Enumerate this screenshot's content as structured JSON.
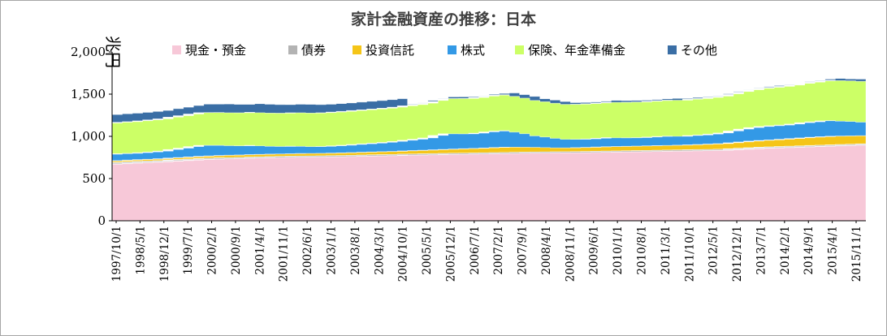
{
  "chart_data": {
    "type": "area",
    "stacked": true,
    "title": "家計金融資産の推移：日本",
    "ylabel": "兆円",
    "xlabel": "",
    "ylim": [
      0,
      2000
    ],
    "yticks": [
      "0",
      "500",
      "1,000",
      "1,500",
      "2,000"
    ],
    "grid": false,
    "legend_position": "top",
    "x_tick_labels": [
      "1997/10/1",
      "1998/5/1",
      "1998/12/1",
      "1999/7/1",
      "2000/2/1",
      "2000/9/1",
      "2001/4/1",
      "2001/11/1",
      "2002/6/1",
      "2003/1/1",
      "2003/8/1",
      "2004/3/1",
      "2004/10/1",
      "2005/5/1",
      "2005/12/1",
      "2006/7/1",
      "2007/2/1",
      "2007/9/1",
      "2008/4/1",
      "2008/11/1",
      "2009/6/1",
      "2010/1/1",
      "2010/8/1",
      "2011/3/1",
      "2011/10/1",
      "2012/5/1",
      "2012/12/1",
      "2013/7/1",
      "2014/2/1",
      "2014/9/1",
      "2015/4/1",
      "2015/11/1"
    ],
    "x": [
      "1997/10",
      "1998/1",
      "1998/4",
      "1998/7",
      "1998/10",
      "1999/1",
      "1999/4",
      "1999/7",
      "1999/10",
      "2000/1",
      "2000/4",
      "2000/7",
      "2000/10",
      "2001/1",
      "2001/4",
      "2001/7",
      "2001/10",
      "2002/1",
      "2002/4",
      "2002/7",
      "2002/10",
      "2003/1",
      "2003/4",
      "2003/7",
      "2003/10",
      "2004/1",
      "2004/4",
      "2004/7",
      "2004/10",
      "2005/1",
      "2005/4",
      "2005/7",
      "2005/10",
      "2006/1",
      "2006/4",
      "2006/7",
      "2006/10",
      "2007/1",
      "2007/4",
      "2007/7",
      "2007/10",
      "2008/1",
      "2008/4",
      "2008/7",
      "2008/10",
      "2009/1",
      "2009/4",
      "2009/7",
      "2009/10",
      "2010/1",
      "2010/4",
      "2010/7",
      "2010/10",
      "2011/1",
      "2011/4",
      "2011/7",
      "2011/10",
      "2012/1",
      "2012/4",
      "2012/7",
      "2012/10",
      "2013/1",
      "2013/4",
      "2013/7",
      "2013/10",
      "2014/1",
      "2014/4",
      "2014/7",
      "2014/10",
      "2015/1",
      "2015/4",
      "2015/7",
      "2015/10",
      "2016/1",
      "2016/4"
    ],
    "series": [
      {
        "name": "現金・預金",
        "color": "#f7c8d8",
        "values": [
          670,
          675,
          682,
          688,
          693,
          698,
          706,
          712,
          718,
          724,
          728,
          732,
          735,
          738,
          742,
          745,
          748,
          750,
          752,
          754,
          755,
          756,
          758,
          760,
          762,
          765,
          768,
          770,
          772,
          776,
          778,
          780,
          782,
          785,
          787,
          788,
          790,
          792,
          794,
          796,
          798,
          800,
          802,
          803,
          804,
          805,
          806,
          808,
          810,
          812,
          814,
          816,
          818,
          820,
          822,
          824,
          826,
          828,
          830,
          832,
          834,
          840,
          846,
          852,
          858,
          862,
          866,
          870,
          874,
          878,
          882,
          886,
          890,
          894,
          898
        ]
      },
      {
        "name": "債券",
        "color": "#b3b3b3",
        "values": [
          18,
          18,
          17,
          17,
          16,
          16,
          16,
          15,
          15,
          15,
          15,
          15,
          14,
          14,
          14,
          14,
          14,
          14,
          14,
          14,
          14,
          14,
          14,
          14,
          14,
          14,
          14,
          14,
          14,
          14,
          14,
          14,
          14,
          14,
          14,
          14,
          14,
          14,
          14,
          14,
          14,
          14,
          14,
          14,
          14,
          14,
          14,
          14,
          14,
          14,
          14,
          14,
          14,
          14,
          14,
          14,
          14,
          14,
          14,
          14,
          14,
          14,
          14,
          14,
          14,
          14,
          14,
          14,
          14,
          14,
          14,
          14,
          14,
          14,
          14
        ]
      },
      {
        "name": "投資信託",
        "color": "#f5c518",
        "values": [
          20,
          20,
          20,
          20,
          20,
          21,
          22,
          23,
          24,
          25,
          26,
          27,
          28,
          28,
          28,
          28,
          28,
          28,
          28,
          29,
          29,
          29,
          30,
          31,
          32,
          33,
          34,
          35,
          36,
          38,
          40,
          42,
          45,
          47,
          49,
          52,
          54,
          57,
          60,
          62,
          60,
          57,
          54,
          50,
          46,
          45,
          47,
          48,
          50,
          52,
          52,
          53,
          53,
          54,
          55,
          55,
          56,
          58,
          60,
          63,
          66,
          70,
          74,
          78,
          80,
          82,
          86,
          90,
          94,
          98,
          100,
          102,
          100,
          98,
          96
        ]
      },
      {
        "name": "株式",
        "color": "#3399e6",
        "values": [
          80,
          82,
          80,
          82,
          86,
          90,
          100,
          110,
          122,
          130,
          125,
          120,
          112,
          108,
          110,
          100,
          92,
          88,
          90,
          85,
          80,
          82,
          86,
          90,
          96,
          100,
          104,
          110,
          118,
          126,
          134,
          145,
          170,
          185,
          180,
          175,
          180,
          190,
          195,
          196,
          178,
          160,
          135,
          125,
          112,
          100,
          98,
          100,
          104,
          108,
          102,
          100,
          100,
          104,
          108,
          110,
          104,
          110,
          112,
          118,
          126,
          140,
          152,
          160,
          165,
          168,
          168,
          172,
          180,
          182,
          188,
          185,
          176,
          170,
          160
        ]
      },
      {
        "name": "保険、年金準備金",
        "color": "#ccff66",
        "values": [
          370,
          372,
          375,
          377,
          380,
          382,
          384,
          385,
          386,
          387,
          388,
          389,
          390,
          391,
          392,
          393,
          394,
          395,
          396,
          397,
          398,
          399,
          400,
          401,
          402,
          403,
          404,
          405,
          406,
          408,
          410,
          412,
          414,
          416,
          418,
          420,
          422,
          424,
          425,
          426,
          424,
          422,
          420,
          418,
          416,
          415,
          416,
          417,
          418,
          420,
          421,
          422,
          423,
          424,
          425,
          426,
          428,
          430,
          432,
          434,
          436,
          440,
          444,
          448,
          452,
          455,
          458,
          462,
          466,
          470,
          474,
          478,
          480,
          482,
          484
        ]
      },
      {
        "name": "その他",
        "color": "#3a6ea5",
        "values": [
          100,
          100,
          100,
          100,
          100,
          100,
          100,
          100,
          100,
          100,
          100,
          100,
          100,
          100,
          100,
          100,
          100,
          100,
          100,
          100,
          100,
          100,
          100,
          100,
          100,
          100,
          100,
          100,
          100,
          20,
          20,
          20,
          20,
          20,
          20,
          20,
          20,
          20,
          20,
          20,
          20,
          20,
          20,
          20,
          20,
          20,
          20,
          20,
          20,
          20,
          20,
          20,
          20,
          20,
          20,
          20,
          20,
          20,
          20,
          20,
          20,
          20,
          20,
          20,
          20,
          20,
          20,
          20,
          20,
          20,
          20,
          20,
          20,
          20,
          20
        ]
      }
    ]
  }
}
